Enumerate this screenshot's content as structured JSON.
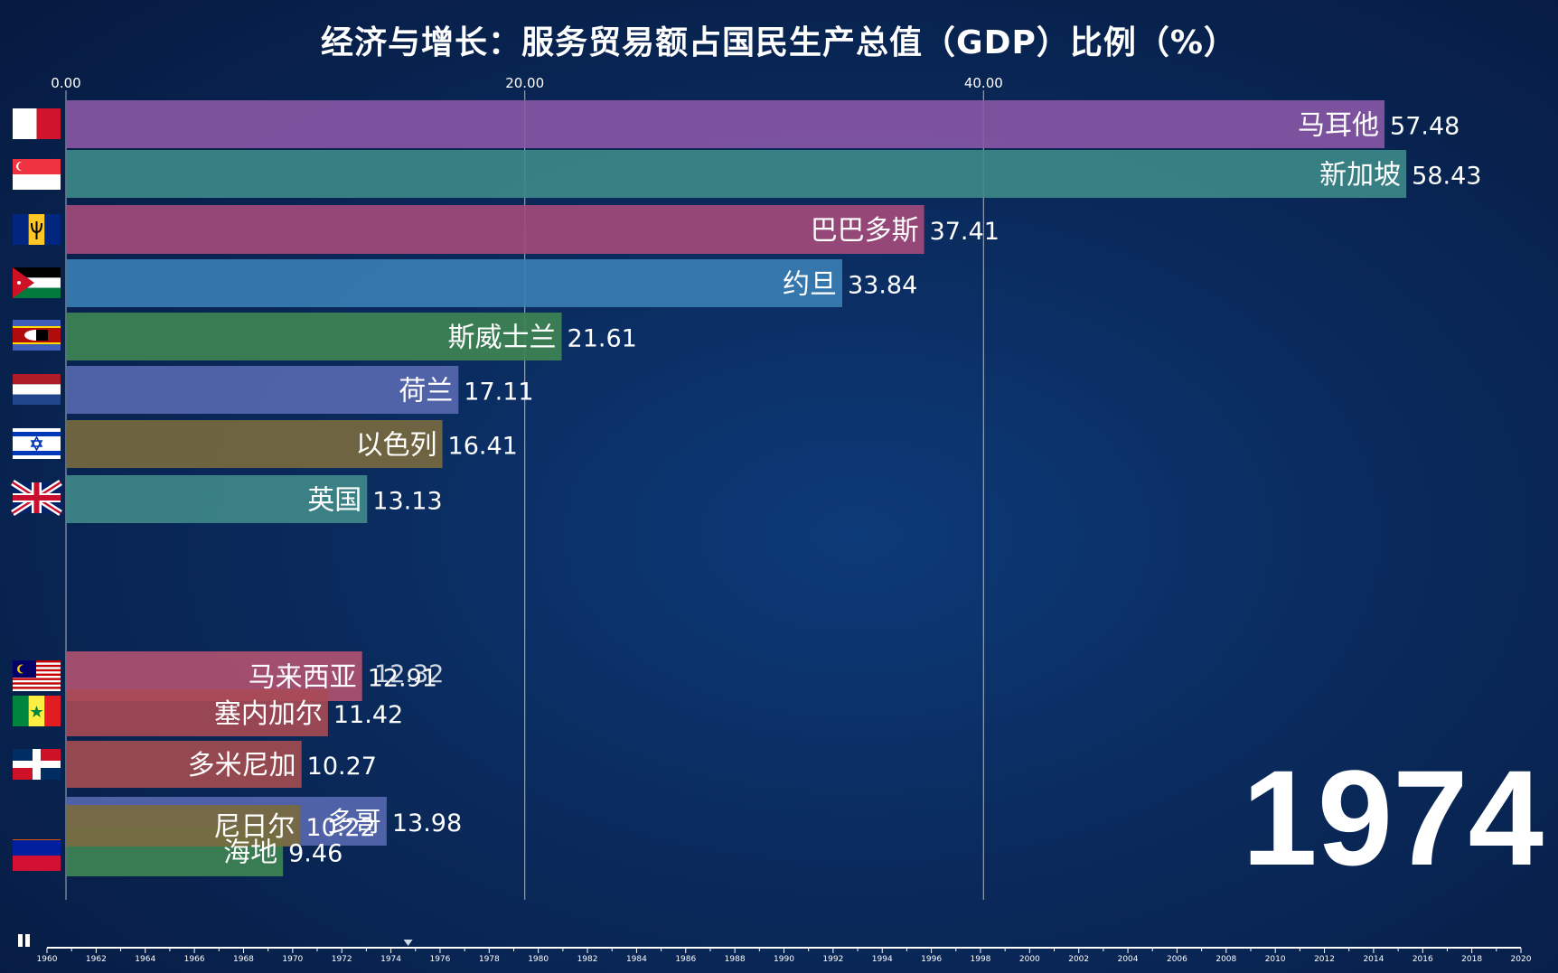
{
  "chart_data": {
    "type": "bar",
    "orientation": "horizontal",
    "title": "经济与增长：服务贸易额占国民生产总值（GDP）比例（%）",
    "xlim": [
      0,
      60
    ],
    "x_ticks": [
      "0.00",
      "20.00",
      "40.00"
    ],
    "x_tick_values": [
      0,
      20,
      40
    ],
    "grid": true,
    "current_year": "1974",
    "bars": [
      {
        "label": "马耳他",
        "value": 57.48,
        "value_label": "57.48",
        "color": "#8a58a6",
        "flag": "malta-flag"
      },
      {
        "label": "新加坡",
        "value": 58.43,
        "value_label": "58.43",
        "color": "#3e8a88",
        "flag": "singapore-flag"
      },
      {
        "label": "巴巴多斯",
        "value": 37.41,
        "value_label": "37.41",
        "color": "#a44a7a",
        "flag": "barbados-flag"
      },
      {
        "label": "约旦",
        "value": 33.84,
        "value_label": "33.84",
        "color": "#3a7fb5",
        "flag": "jordan-flag"
      },
      {
        "label": "斯威士兰",
        "value": 21.61,
        "value_label": "21.61",
        "color": "#3f8553",
        "flag": "eswatini-flag"
      },
      {
        "label": "荷兰",
        "value": 17.11,
        "value_label": "17.11",
        "color": "#5868b0",
        "flag": "netherlands-flag"
      },
      {
        "label": "以色列",
        "value": 16.41,
        "value_label": "16.41",
        "color": "#7a6a3e",
        "flag": "israel-flag"
      },
      {
        "label": "英国",
        "value": 13.13,
        "value_label": "13.13",
        "color": "#3f8a8a",
        "flag": "uk-flag"
      },
      {
        "label": "马来西亚",
        "value": 12.91,
        "value_label": "12.91",
        "color": "#b25270",
        "flag": "malaysia-flag"
      },
      {
        "label": "塞内加尔",
        "value": 11.42,
        "value_label": "11.42",
        "color": "#a84a54",
        "flag": "senegal-flag"
      },
      {
        "label": "多米尼加",
        "value": 10.27,
        "value_label": "10.27",
        "color": "#a44c50",
        "flag": "dominican-flag"
      },
      {
        "label": "多哥",
        "value": 13.98,
        "value_label": "13.98",
        "color": "#5868b0",
        "flag": "togo-flag"
      },
      {
        "label": "海地",
        "value": 9.46,
        "value_label": "9.46",
        "color": "#3f8553",
        "flag": "haiti-flag"
      },
      {
        "label": "尼日尔",
        "value": 10.22,
        "value_label": "10.22",
        "color": "#7a6a3e",
        "flag": "niger-flag"
      }
    ],
    "overlay_texts": [
      "12.32"
    ]
  },
  "timeline": {
    "years": [
      "1960",
      "1962",
      "1964",
      "1966",
      "1968",
      "1970",
      "1972",
      "1974",
      "1976",
      "1978",
      "1980",
      "1982",
      "1984",
      "1986",
      "1988",
      "1990",
      "1992",
      "1994",
      "1996",
      "1998",
      "2000",
      "2002",
      "2004",
      "2006",
      "2008",
      "2010",
      "2012",
      "2014",
      "2016",
      "2018",
      "2020"
    ],
    "current": 1974.7
  },
  "controls": {
    "play_icon": "pause-icon"
  }
}
